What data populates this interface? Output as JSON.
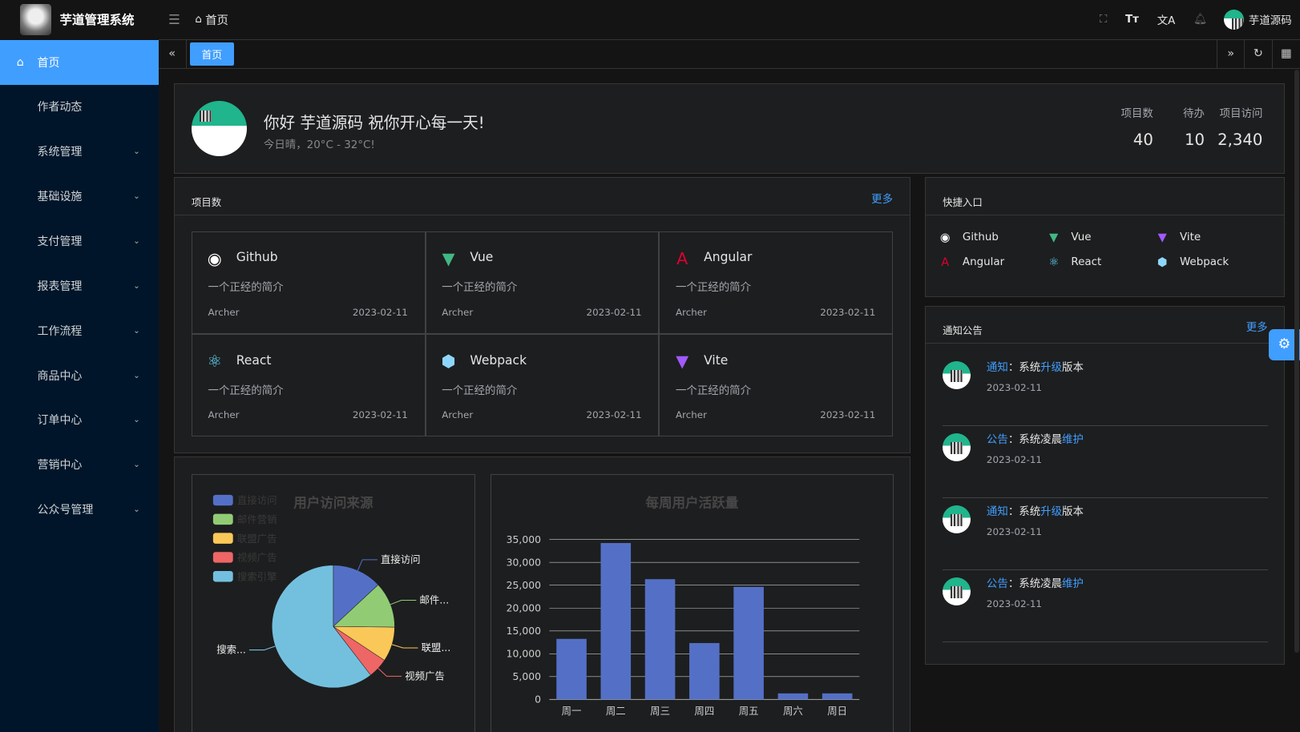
{
  "app": {
    "title": "芋道管理系统"
  },
  "header": {
    "breadcrumb": "首页",
    "user": "芋道源码",
    "icons": [
      "fullscreen-icon",
      "font-size-icon",
      "translate-icon",
      "bell-icon"
    ]
  },
  "sidebar": {
    "items": [
      {
        "label": "首页",
        "active": true
      },
      {
        "label": "作者动态"
      },
      {
        "label": "系统管理",
        "expandable": true
      },
      {
        "label": "基础设施",
        "expandable": true
      },
      {
        "label": "支付管理",
        "expandable": true
      },
      {
        "label": "报表管理",
        "expandable": true
      },
      {
        "label": "工作流程",
        "expandable": true
      },
      {
        "label": "商品中心",
        "expandable": true
      },
      {
        "label": "订单中心",
        "expandable": true
      },
      {
        "label": "营销中心",
        "expandable": true
      },
      {
        "label": "公众号管理",
        "expandable": true
      }
    ]
  },
  "tabs": [
    {
      "label": "首页",
      "active": true
    }
  ],
  "welcome": {
    "greeting": "你好 芋道源码 祝你开心每一天!",
    "weather": "今日晴，20°C - 32°C!",
    "stats": [
      {
        "label": "项目数",
        "value": "40"
      },
      {
        "label": "待办",
        "value": "10"
      },
      {
        "label": "项目访问",
        "value": "2,340"
      }
    ]
  },
  "projects": {
    "title": "项目数",
    "more": "更多",
    "items": [
      {
        "name": "Github",
        "icon": "github-icon",
        "desc": "一个正经的简介",
        "author": "Archer",
        "date": "2023-02-11"
      },
      {
        "name": "Vue",
        "icon": "vue-icon",
        "desc": "一个正经的简介",
        "author": "Archer",
        "date": "2023-02-11"
      },
      {
        "name": "Angular",
        "icon": "angular-icon",
        "desc": "一个正经的简介",
        "author": "Archer",
        "date": "2023-02-11"
      },
      {
        "name": "React",
        "icon": "react-icon",
        "desc": "一个正经的简介",
        "author": "Archer",
        "date": "2023-02-11"
      },
      {
        "name": "Webpack",
        "icon": "webpack-icon",
        "desc": "一个正经的简介",
        "author": "Archer",
        "date": "2023-02-11"
      },
      {
        "name": "Vite",
        "icon": "vite-icon",
        "desc": "一个正经的简介",
        "author": "Archer",
        "date": "2023-02-11"
      }
    ]
  },
  "shortcuts": {
    "title": "快捷入口",
    "items": [
      {
        "name": "Github"
      },
      {
        "name": "Vue"
      },
      {
        "name": "Vite"
      },
      {
        "name": "Angular"
      },
      {
        "name": "React"
      },
      {
        "name": "Webpack"
      }
    ]
  },
  "notices": {
    "title": "通知公告",
    "more": "更多",
    "items": [
      {
        "type": "通知",
        "sep": "：",
        "pre": "系统",
        "hl": "升级",
        "post": "版本",
        "date": "2023-02-11"
      },
      {
        "type": "公告",
        "sep": "：",
        "pre": "系统凌晨",
        "hl": "维护",
        "post": "",
        "date": "2023-02-11"
      },
      {
        "type": "通知",
        "sep": "：",
        "pre": "系统",
        "hl": "升级",
        "post": "版本",
        "date": "2023-02-11"
      },
      {
        "type": "公告",
        "sep": "：",
        "pre": "系统凌晨",
        "hl": "维护",
        "post": "",
        "date": "2023-02-11"
      }
    ]
  },
  "chart_data": [
    {
      "type": "pie",
      "title": "用户访问来源",
      "legend_position": "top-left",
      "categories": [
        "直接访问",
        "邮件营销",
        "联盟广告",
        "视频广告",
        "搜索引擎"
      ],
      "slice_labels": [
        "直接访问",
        "邮件...",
        "联盟...",
        "视频广告",
        "搜索..."
      ],
      "values": [
        335,
        310,
        234,
        135,
        1548
      ],
      "colors": [
        "#5470c6",
        "#91cc75",
        "#fac858",
        "#ee6666",
        "#73c0de"
      ]
    },
    {
      "type": "bar",
      "title": "每周用户活跃量",
      "categories": [
        "周一",
        "周二",
        "周三",
        "周四",
        "周五",
        "周六",
        "周日"
      ],
      "values": [
        13253,
        34235,
        26321,
        12340,
        24643,
        1322,
        1324
      ],
      "ylim": [
        0,
        35000
      ],
      "yticks": [
        "0",
        "5,000",
        "10,000",
        "15,000",
        "20,000",
        "25,000",
        "30,000",
        "35,000"
      ],
      "grid": true,
      "color": "#5470c6"
    }
  ]
}
